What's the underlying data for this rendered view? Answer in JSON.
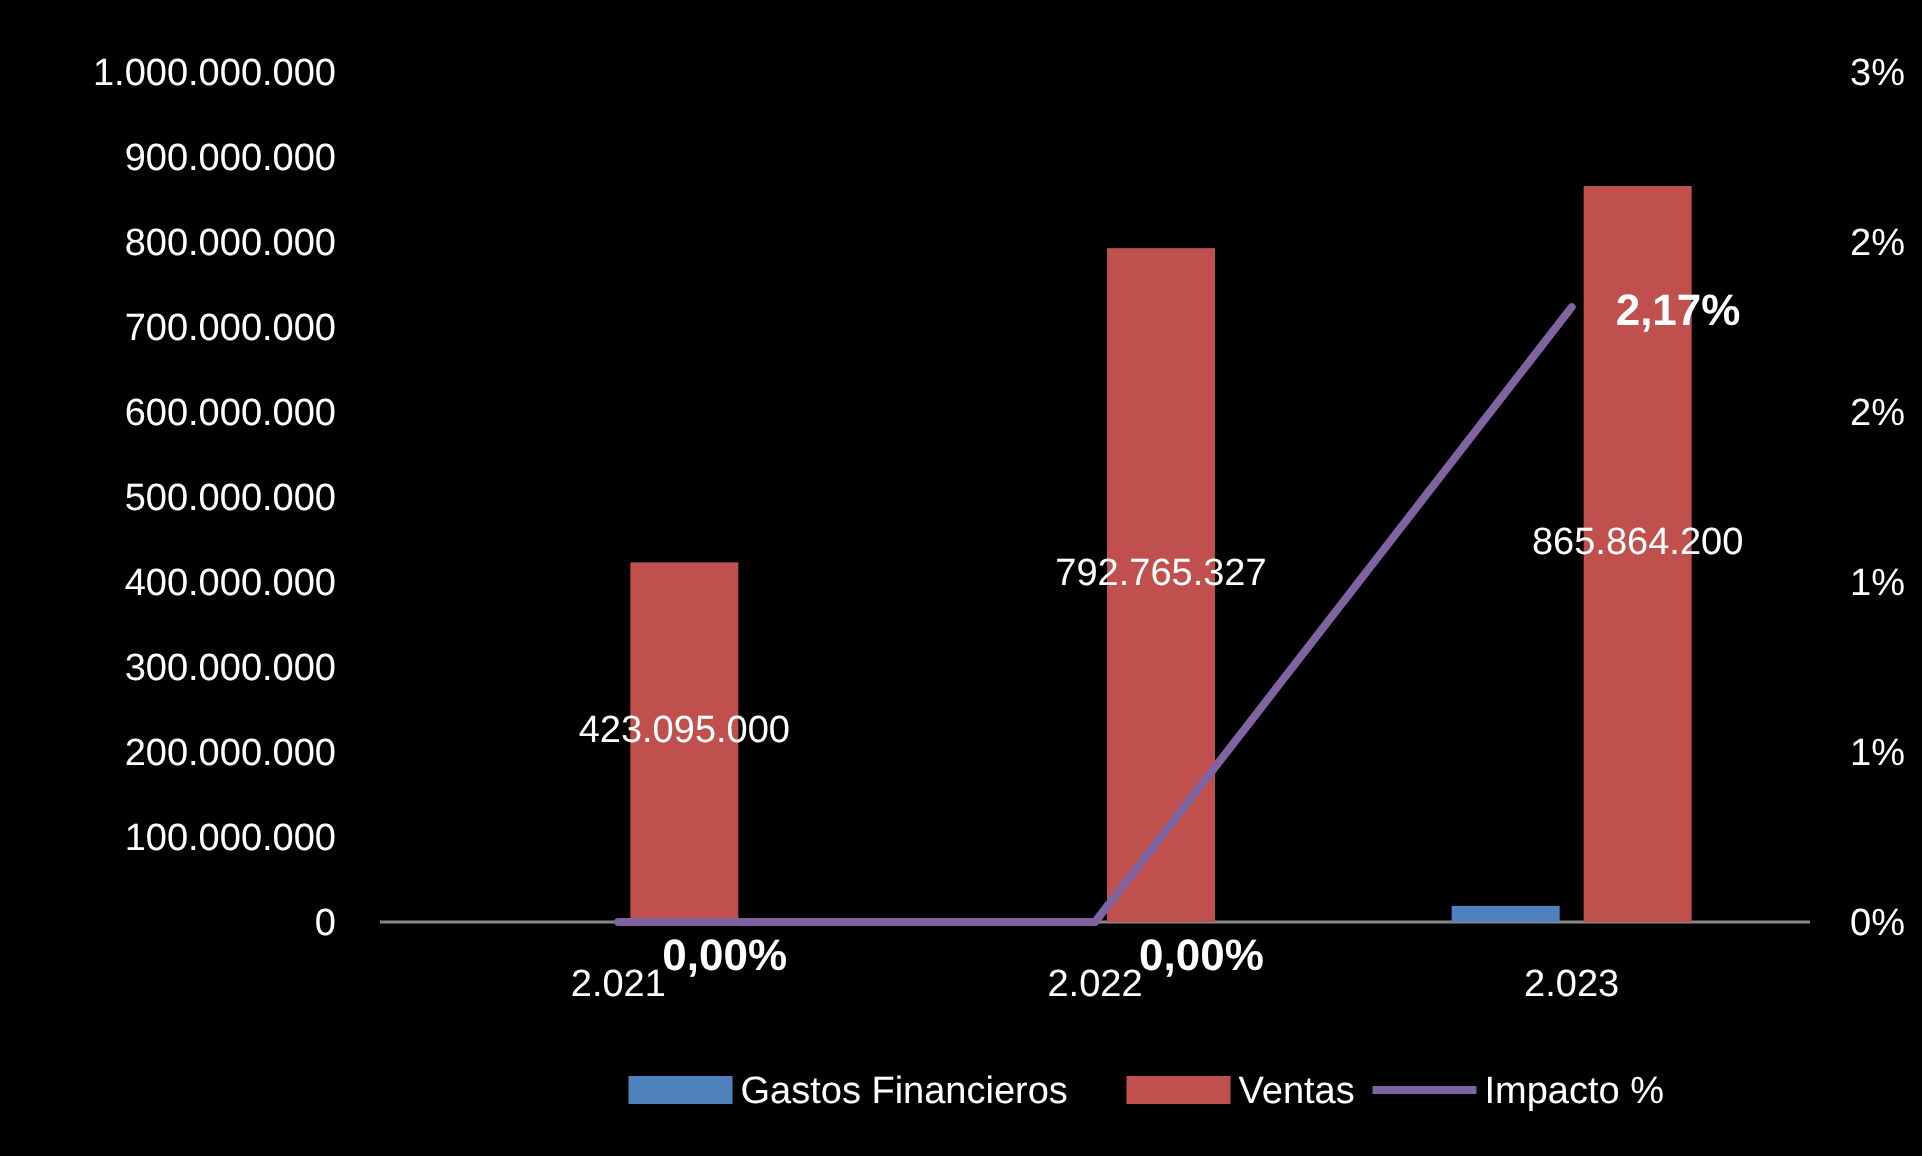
{
  "chart_data": {
    "type": "bar",
    "categories": [
      "2.021",
      "2.022",
      "2.023"
    ],
    "series": [
      {
        "name": "Gastos Financieros",
        "color": "#4f81bd",
        "values": [
          0,
          0,
          19000000
        ]
      },
      {
        "name": "Ventas",
        "color": "#c0504d",
        "values": [
          423095000,
          792765327,
          865864200
        ],
        "value_labels": [
          "423.095.000",
          "792.765.327",
          "865.864.200"
        ]
      },
      {
        "name": "Impacto %",
        "type": "line",
        "axis": "y2",
        "color": "#8064a2",
        "values": [
          0,
          0,
          2.17
        ],
        "value_labels": [
          "0,00%",
          "0,00%",
          "2,17%"
        ]
      }
    ],
    "ylim": [
      0,
      1000000000
    ],
    "yticks": [
      {
        "value": 0,
        "label": "0"
      },
      {
        "value": 100000000,
        "label": "100.000.000"
      },
      {
        "value": 200000000,
        "label": "200.000.000"
      },
      {
        "value": 300000000,
        "label": "300.000.000"
      },
      {
        "value": 400000000,
        "label": "400.000.000"
      },
      {
        "value": 500000000,
        "label": "500.000.000"
      },
      {
        "value": 600000000,
        "label": "600.000.000"
      },
      {
        "value": 700000000,
        "label": "700.000.000"
      },
      {
        "value": 800000000,
        "label": "800.000.000"
      },
      {
        "value": 900000000,
        "label": "900.000.000"
      },
      {
        "value": 1000000000,
        "label": "1.000.000.000"
      }
    ],
    "y2lim": [
      0,
      3
    ],
    "y2ticks": [
      {
        "value": 0,
        "label": "0%"
      },
      {
        "value": 0.6,
        "label": "1%"
      },
      {
        "value": 1.2,
        "label": "1%"
      },
      {
        "value": 1.8,
        "label": "2%"
      },
      {
        "value": 2.4,
        "label": "2%"
      },
      {
        "value": 3,
        "label": "3%"
      }
    ],
    "legend": "bottom",
    "grid": false
  }
}
